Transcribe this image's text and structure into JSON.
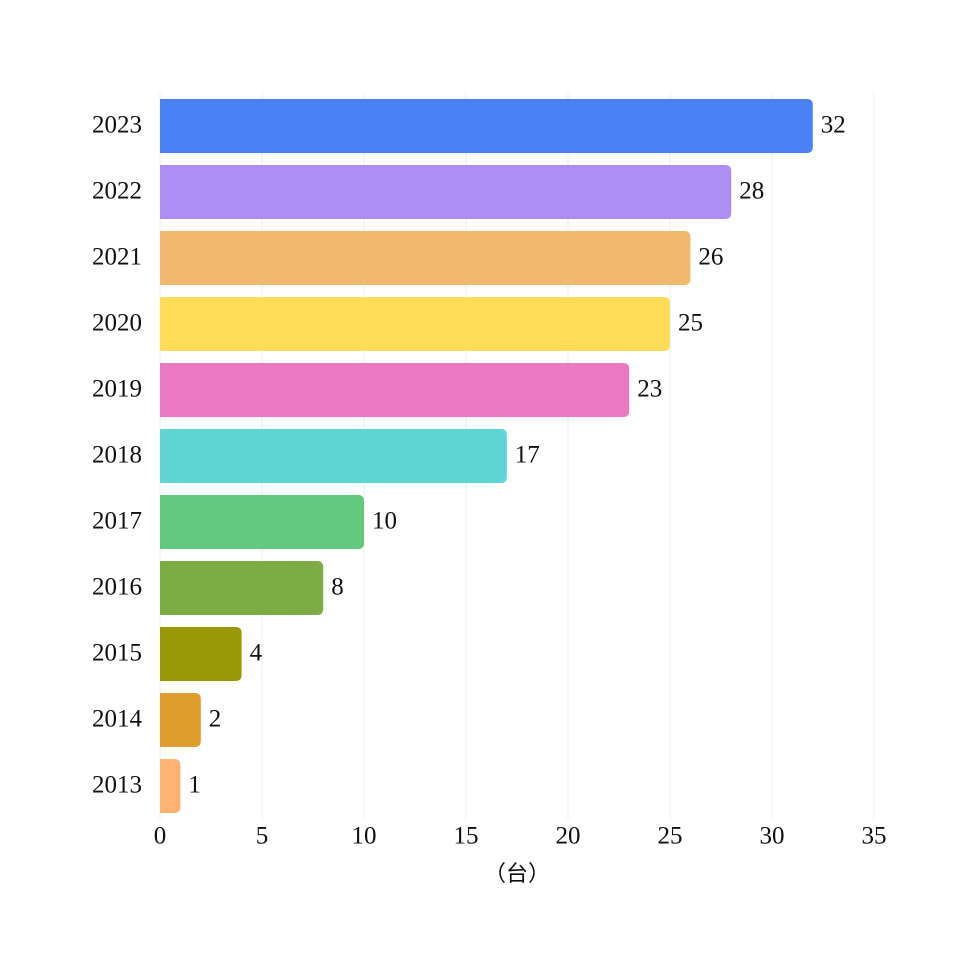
{
  "chart_data": {
    "type": "barh",
    "categories": [
      "2023",
      "2022",
      "2021",
      "2020",
      "2019",
      "2018",
      "2017",
      "2016",
      "2015",
      "2014",
      "2013"
    ],
    "values": [
      32,
      28,
      26,
      25,
      23,
      17,
      10,
      8,
      4,
      2,
      1
    ],
    "colors": [
      "#4c80f7",
      "#ad8ef5",
      "#f2b86e",
      "#ffdd5a",
      "#e979c3",
      "#5dd5d4",
      "#63c97f",
      "#7dab46",
      "#999905",
      "#de9c2b",
      "#feb274"
    ],
    "xlim": [
      0,
      35
    ],
    "xticks": [
      0,
      5,
      10,
      15,
      20,
      25,
      30,
      35
    ],
    "xlabel": "（台）",
    "grid": true
  }
}
